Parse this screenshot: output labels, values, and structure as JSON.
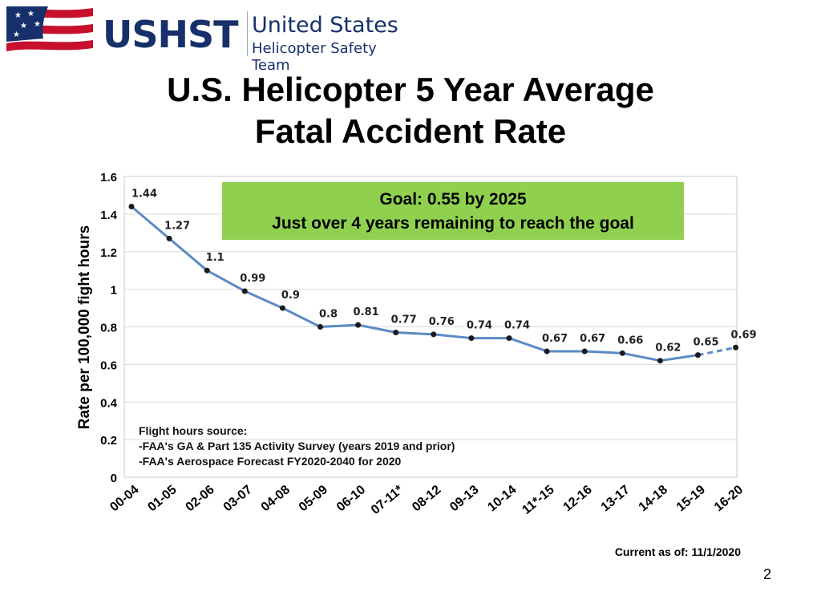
{
  "logo": {
    "mark": "USHST",
    "line1": "United States",
    "line2": "Helicopter Safety Team",
    "colors": {
      "navy": "#17306b",
      "red": "#c8102e"
    }
  },
  "title": {
    "line1": "U.S. Helicopter 5 Year Average",
    "line2": "Fatal Accident Rate"
  },
  "goal_box": {
    "line1": "Goal: 0.55 by 2025",
    "line2": "Just over 4 years remaining to reach the goal",
    "color": "#8fd14f"
  },
  "note": {
    "line1": "Flight hours source:",
    "line2": "-FAA's GA & Part 135 Activity Survey (years 2019 and prior)",
    "line3": "-FAA's Aerospace Forecast FY2020-2040 for 2020"
  },
  "current_as_of": "Current as of:  11/1/2020",
  "page_number": "2",
  "chart_data": {
    "type": "line",
    "ylabel": "Rate per 100,000 fight hours",
    "xlabel": "",
    "ylim": [
      0,
      1.6
    ],
    "yticks": [
      "0",
      "0.2",
      "0.4",
      "0.6",
      "0.8",
      "1",
      "1.2",
      "1.4",
      "1.6"
    ],
    "grid": true,
    "categories": [
      "00-04",
      "01-05",
      "02-06",
      "03-07",
      "04-08",
      "05-09",
      "06-10",
      "07-11*",
      "08-12",
      "09-13",
      "10-14",
      "11*-15",
      "12-16",
      "13-17",
      "14-18",
      "15-19",
      "16-20"
    ],
    "series": [
      {
        "values": [
          1.44,
          1.27,
          1.1,
          0.99,
          0.9,
          0.8,
          0.81,
          0.77,
          0.76,
          0.74,
          0.74,
          0.67,
          0.67,
          0.66,
          0.62,
          0.65,
          0.69
        ],
        "labels": [
          "1.44",
          "1.27",
          "1.1",
          "0.99",
          "0.9",
          "0.8",
          "0.81",
          "0.77",
          "0.76",
          "0.74",
          "0.74",
          "0.67",
          "0.67",
          "0.66",
          "0.62",
          "0.65",
          "0.69"
        ],
        "color": "#5b8ac6",
        "dashed_last_segment": true
      }
    ]
  }
}
